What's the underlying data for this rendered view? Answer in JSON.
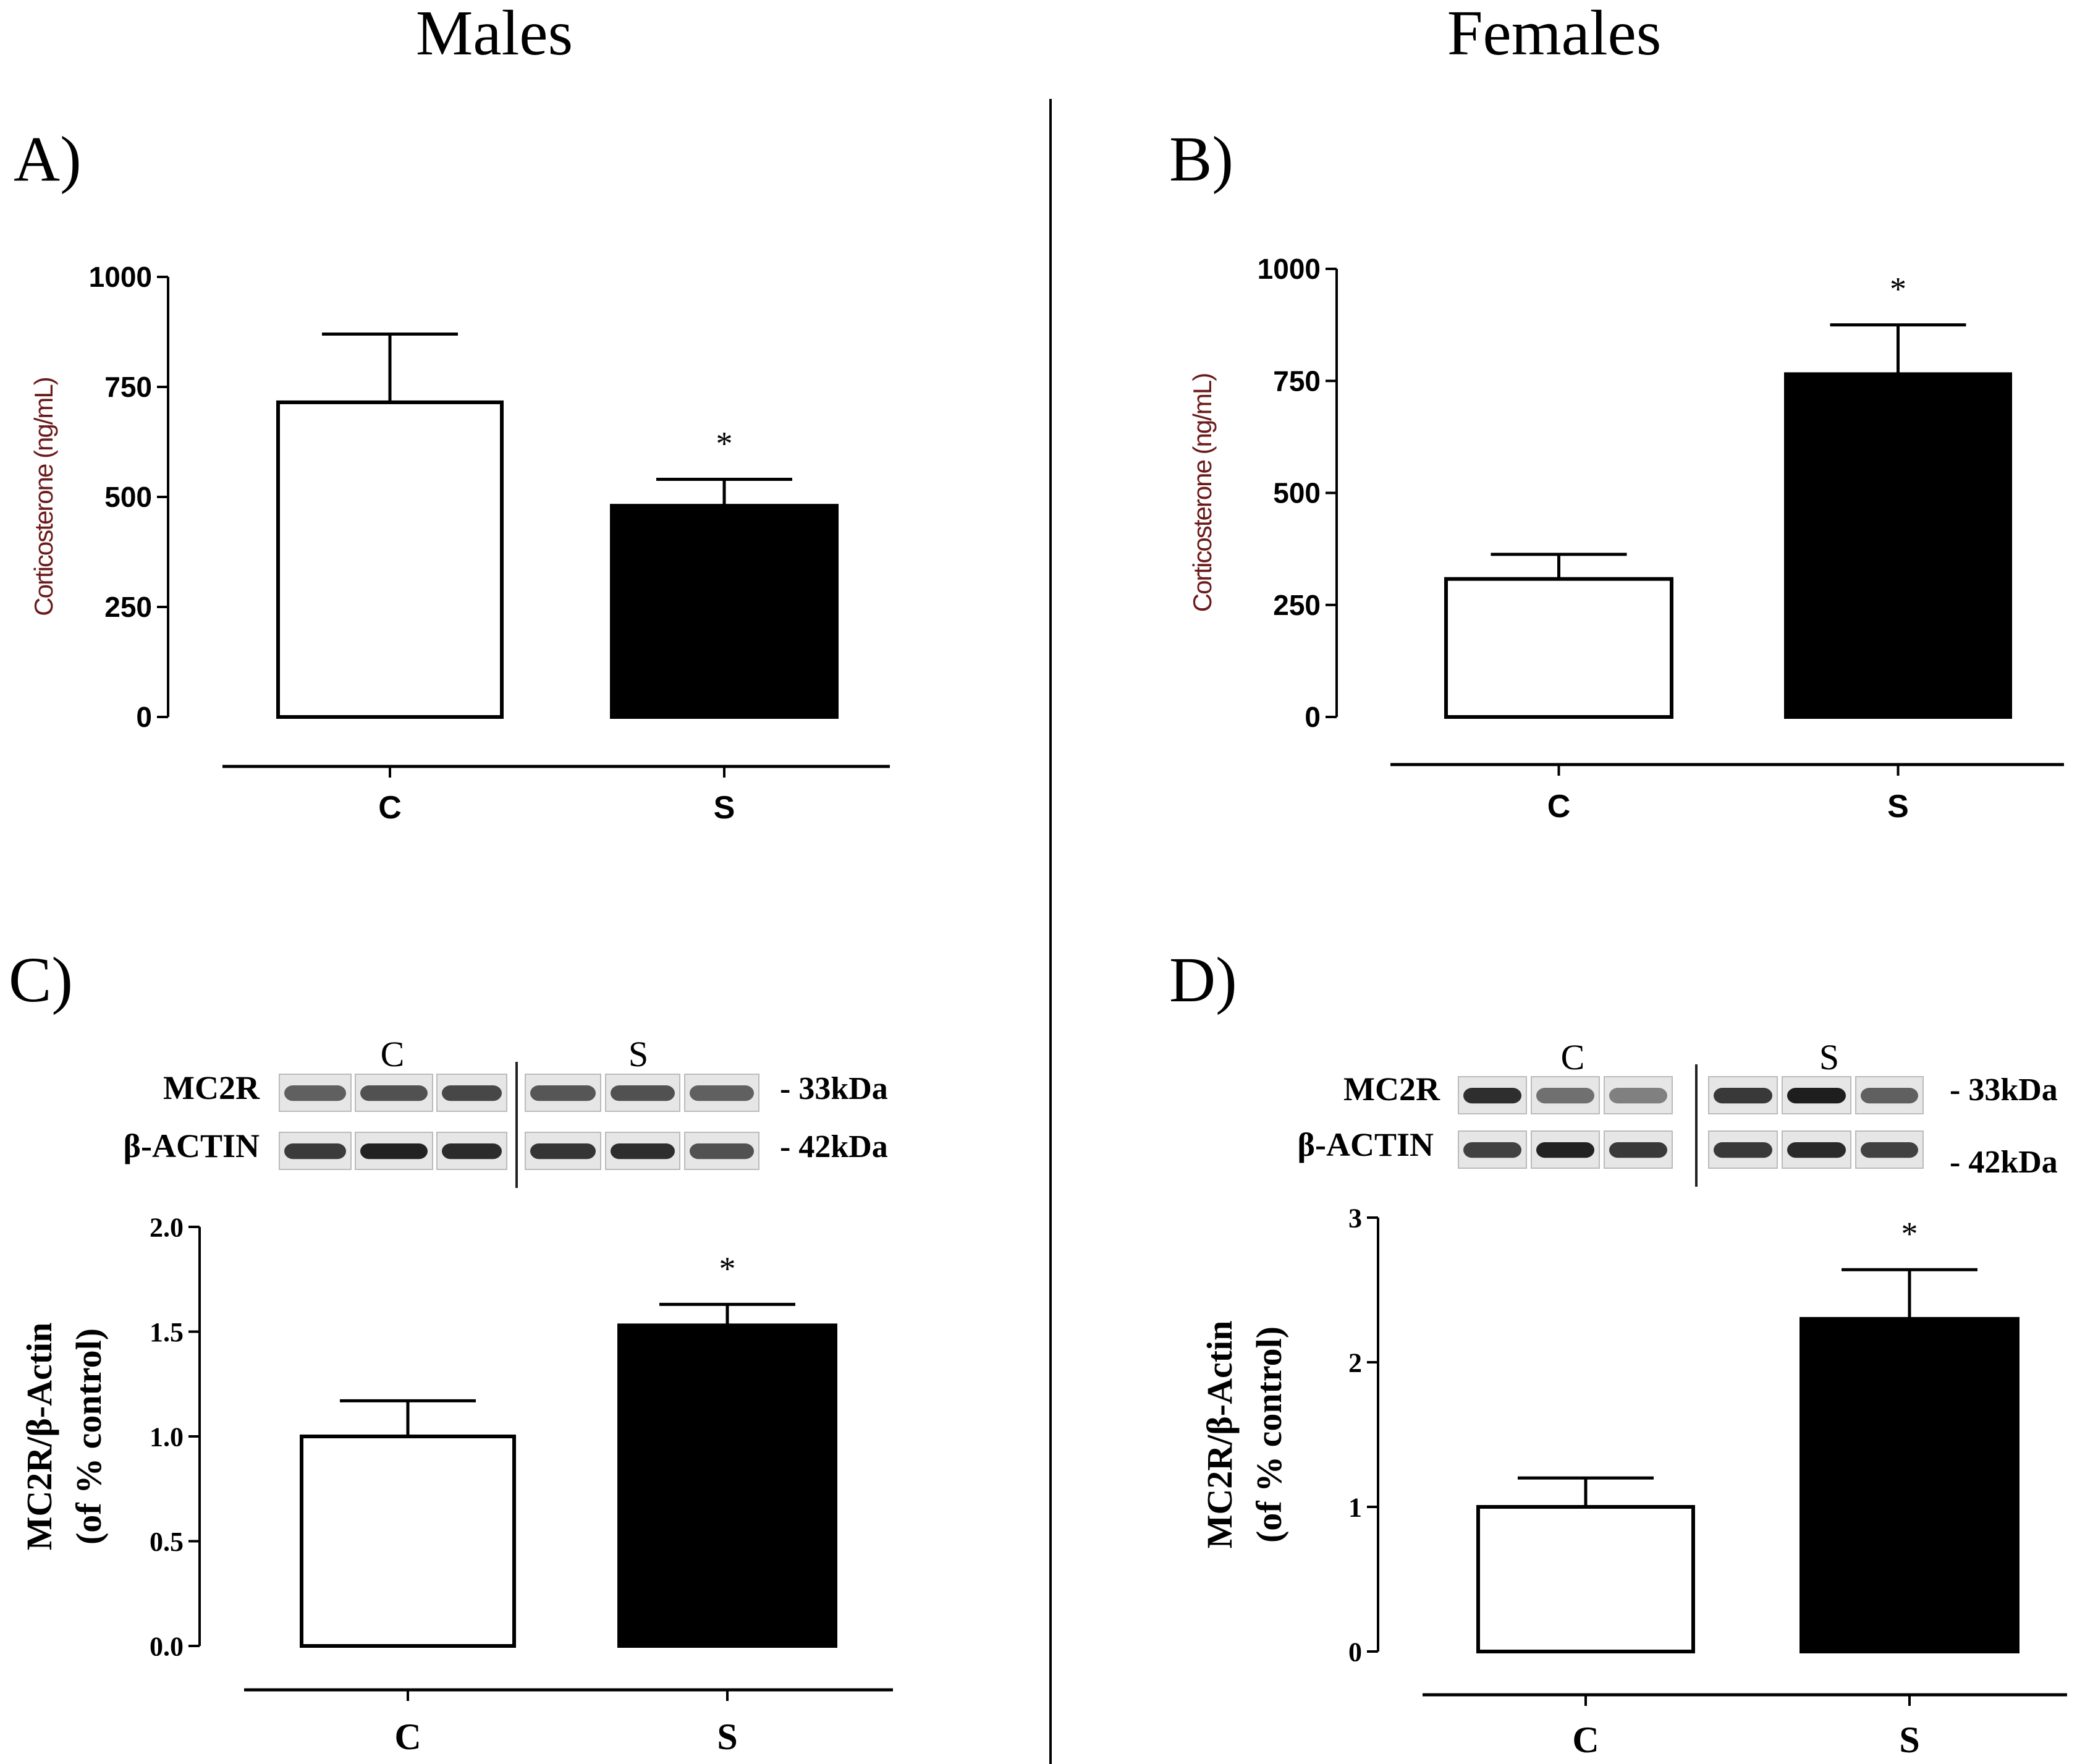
{
  "headers": {
    "left": "Males",
    "right": "Females"
  },
  "colors": {
    "control_bar": "#ffffff",
    "stress_bar": "#000000",
    "axis": "#000000",
    "ylabel_ab": "#6b1a1a"
  },
  "panels": {
    "A": {
      "label": "A)"
    },
    "B": {
      "label": "B)"
    },
    "C": {
      "label": "C)",
      "blot": {
        "group_labels": [
          "C",
          "S"
        ],
        "rows": [
          "MC2R",
          "β-ACTIN"
        ],
        "sizes": [
          "- 33kDa",
          "- 42kDa"
        ]
      }
    },
    "D": {
      "label": "D)",
      "blot": {
        "group_labels": [
          "C",
          "S"
        ],
        "rows": [
          "MC2R",
          "β-ACTIN"
        ],
        "sizes": [
          "- 33kDa",
          "- 42kDa"
        ]
      }
    }
  },
  "chart_data": [
    {
      "id": "A",
      "type": "bar",
      "categories": [
        "C",
        "S"
      ],
      "values": [
        715,
        480
      ],
      "errors": [
        155,
        60
      ],
      "significance": [
        "",
        "*"
      ],
      "ylabel": "Corticosterone (ng/mL)",
      "ylim": [
        0,
        1000
      ],
      "yticks": [
        "0",
        "250",
        "500",
        "750",
        "1000"
      ],
      "ytick_values": [
        0,
        250,
        500,
        750,
        1000
      ]
    },
    {
      "id": "B",
      "type": "bar",
      "categories": [
        "C",
        "S"
      ],
      "values": [
        308,
        765
      ],
      "errors": [
        55,
        110
      ],
      "significance": [
        "",
        "*"
      ],
      "ylabel": "Corticosterone (ng/mL)",
      "ylim": [
        0,
        1000
      ],
      "yticks": [
        "0",
        "250",
        "500",
        "750",
        "1000"
      ],
      "ytick_values": [
        0,
        250,
        500,
        750,
        1000
      ]
    },
    {
      "id": "C",
      "type": "bar",
      "categories": [
        "C",
        "S"
      ],
      "values": [
        1.0,
        1.53
      ],
      "errors": [
        0.17,
        0.1
      ],
      "significance": [
        "",
        "*"
      ],
      "ylabel_lines": [
        "MC2R/β-Actin",
        "(of % control)"
      ],
      "ylim": [
        0,
        2.0
      ],
      "yticks": [
        "0.0",
        "0.5",
        "1.0",
        "1.5",
        "2.0"
      ],
      "ytick_values": [
        0,
        0.5,
        1.0,
        1.5,
        2.0
      ]
    },
    {
      "id": "D",
      "type": "bar",
      "categories": [
        "C",
        "S"
      ],
      "values": [
        1.0,
        2.3
      ],
      "errors": [
        0.2,
        0.34
      ],
      "significance": [
        "",
        "*"
      ],
      "ylabel_lines": [
        "MC2R/β-Actin",
        "(of % control)"
      ],
      "ylim": [
        0,
        3
      ],
      "yticks": [
        "0",
        "1",
        "2",
        "3"
      ],
      "ytick_values": [
        0,
        1,
        2,
        3
      ]
    }
  ]
}
